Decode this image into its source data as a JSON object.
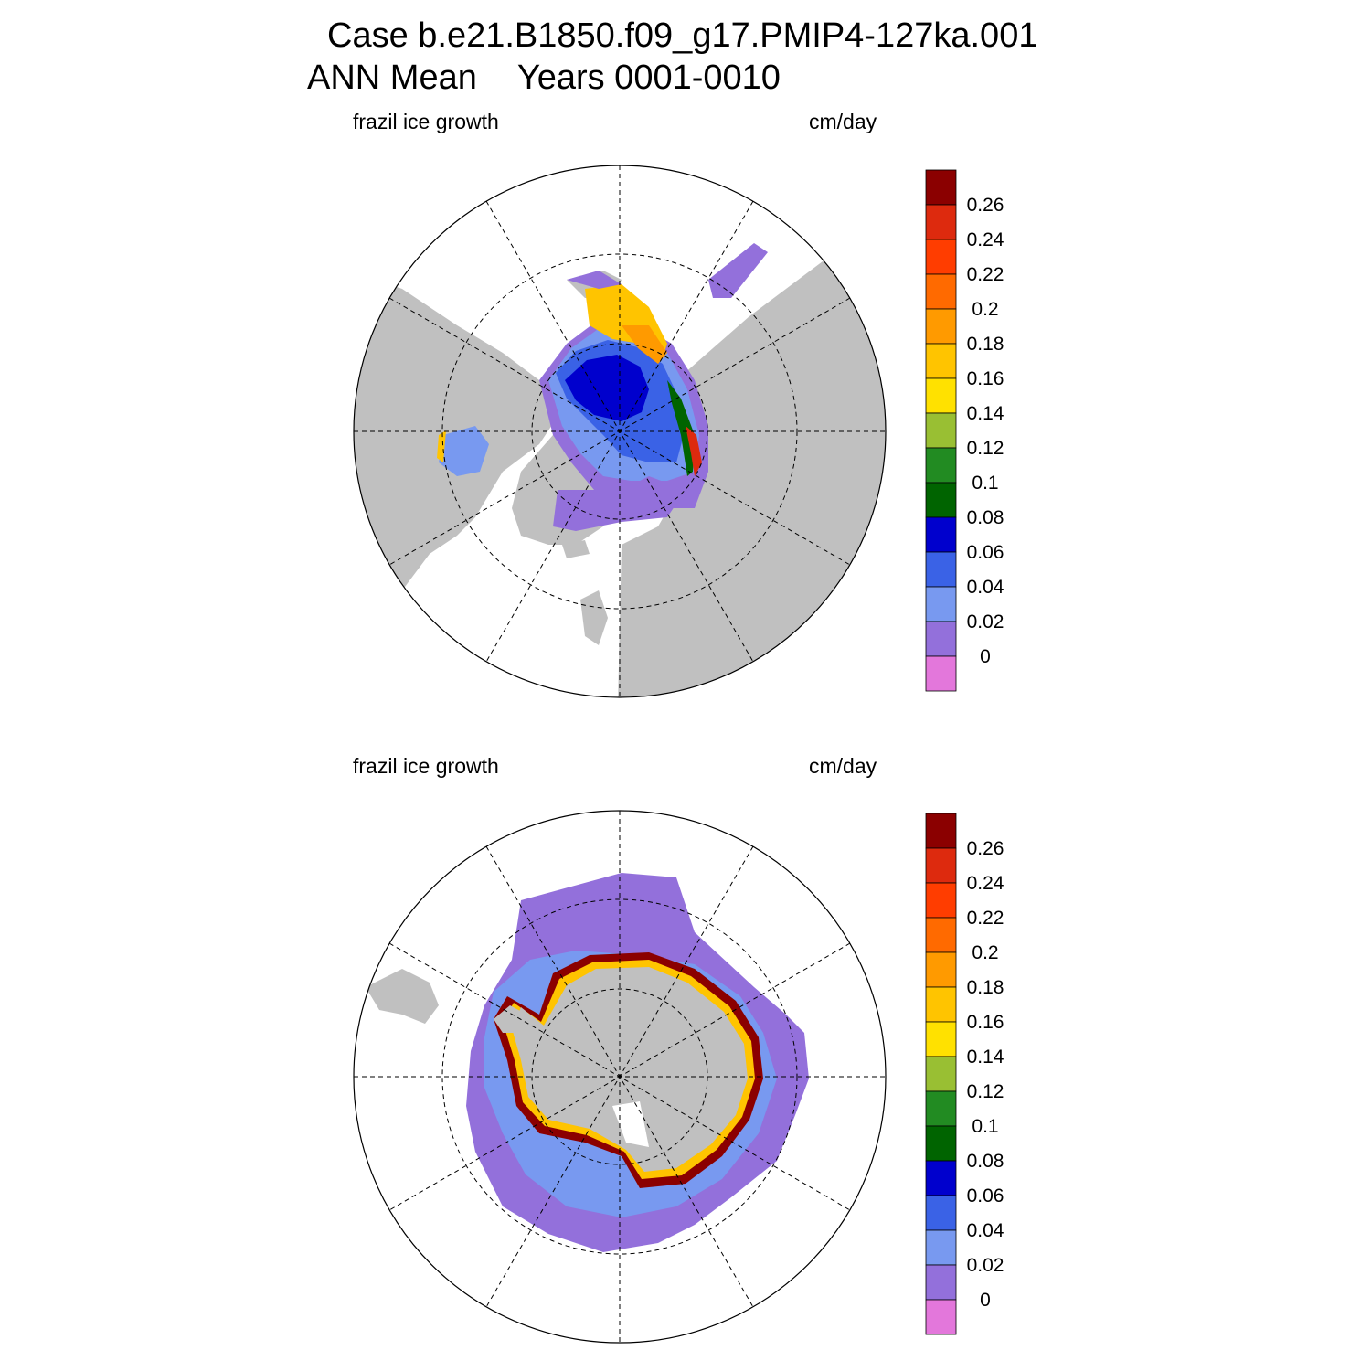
{
  "title": {
    "case_line": "Case b.e21.B1850.f09_g17.PMIP4-127ka.001",
    "season": "ANN Mean",
    "years": "Years 0001-0010"
  },
  "panels": [
    {
      "variable": "frazil ice growth",
      "units": "cm/day",
      "hemisphere": "north"
    },
    {
      "variable": "frazil ice growth",
      "units": "cm/day",
      "hemisphere": "south"
    }
  ],
  "colorbar": {
    "labels": [
      "0.26",
      "0.24",
      "0.22",
      "0.2",
      "0.18",
      "0.16",
      "0.14",
      "0.12",
      "0.1",
      "0.08",
      "0.06",
      "0.04",
      "0.02",
      "0"
    ],
    "colors": [
      "#8b0000",
      "#dd2a0e",
      "#ff3d00",
      "#ff6a00",
      "#ff9a00",
      "#ffc400",
      "#ffe100",
      "#99bf33",
      "#228b22",
      "#006400",
      "#0000cd",
      "#3a62e6",
      "#7899f0",
      "#9370db",
      "#e377db"
    ]
  },
  "map_colors": {
    "land": "#c0c0c0",
    "ocean_no_ice": "#ffffff"
  }
}
